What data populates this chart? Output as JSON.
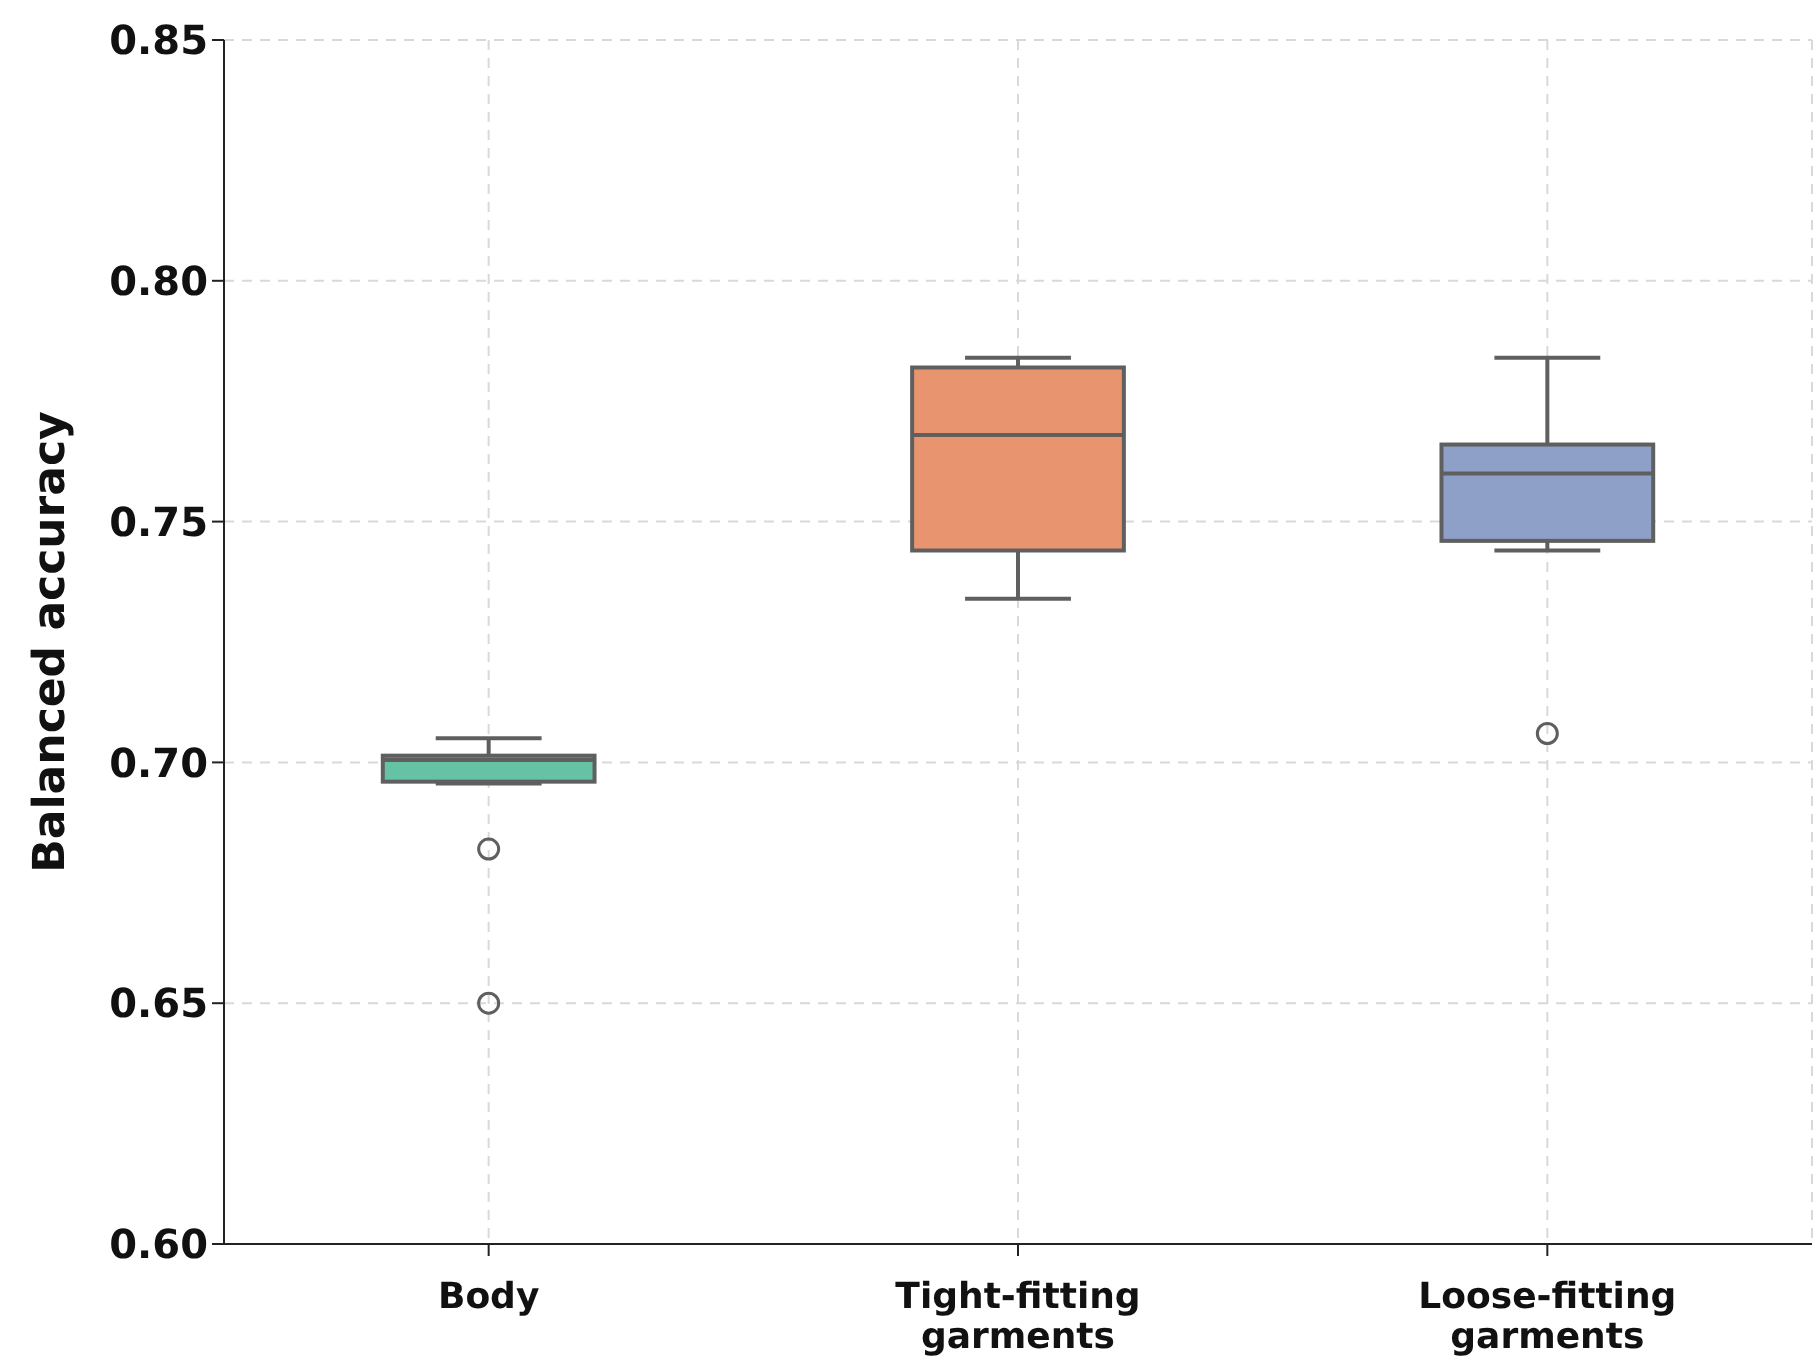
{
  "chart_data": {
    "type": "box",
    "ylabel": "Balanced accuracy",
    "categories": [
      "Body",
      "Tight-fitting\ngarments",
      "Loose-fitting\ngarments"
    ],
    "colors": [
      "#66c2a5",
      "#e8956f",
      "#8ea0c8"
    ],
    "boxes": [
      {
        "low": 0.6956,
        "q1": 0.696,
        "median": 0.7005,
        "q3": 0.7014,
        "high": 0.705,
        "outliers": [
          0.682,
          0.65
        ]
      },
      {
        "low": 0.734,
        "q1": 0.744,
        "median": 0.768,
        "q3": 0.782,
        "high": 0.784
      },
      {
        "low": 0.744,
        "q1": 0.746,
        "median": 0.76,
        "q3": 0.766,
        "high": 0.784,
        "outliers": [
          0.706
        ]
      }
    ],
    "ylim": [
      0.6,
      0.85
    ],
    "yticks": [
      {
        "value": 0.6,
        "label": "0.60"
      },
      0.65,
      {
        "value": 0.7,
        "label": "0.70"
      },
      0.75,
      {
        "value": 0.8,
        "label": "0.80"
      },
      0.85
    ],
    "grid": true
  }
}
